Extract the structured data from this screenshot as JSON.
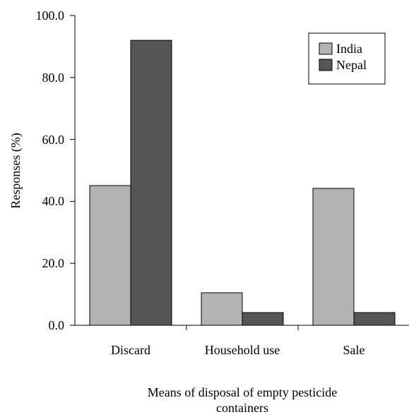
{
  "chart_data": {
    "type": "bar",
    "xlabel": "Means of disposal of empty pesticide containers",
    "ylabel": "Responses (%)",
    "categories": [
      "Discard",
      "Household use",
      "Sale"
    ],
    "series": [
      {
        "name": "India",
        "color": "#b3b3b3",
        "values": [
          45.1,
          10.5,
          44.2
        ]
      },
      {
        "name": "Nepal",
        "color": "#555555",
        "values": [
          92.0,
          4.1,
          4.1
        ]
      }
    ],
    "ylim": [
      0,
      100
    ],
    "yticks": [
      {
        "value": 0,
        "label": "0.0"
      },
      {
        "value": 20,
        "label": "20.0"
      },
      {
        "value": 40,
        "label": "40.0"
      },
      {
        "value": 60,
        "label": "60.0"
      },
      {
        "value": 80,
        "label": "80.0"
      },
      {
        "value": 100,
        "label": "100.0"
      }
    ],
    "legend": "upper right"
  }
}
